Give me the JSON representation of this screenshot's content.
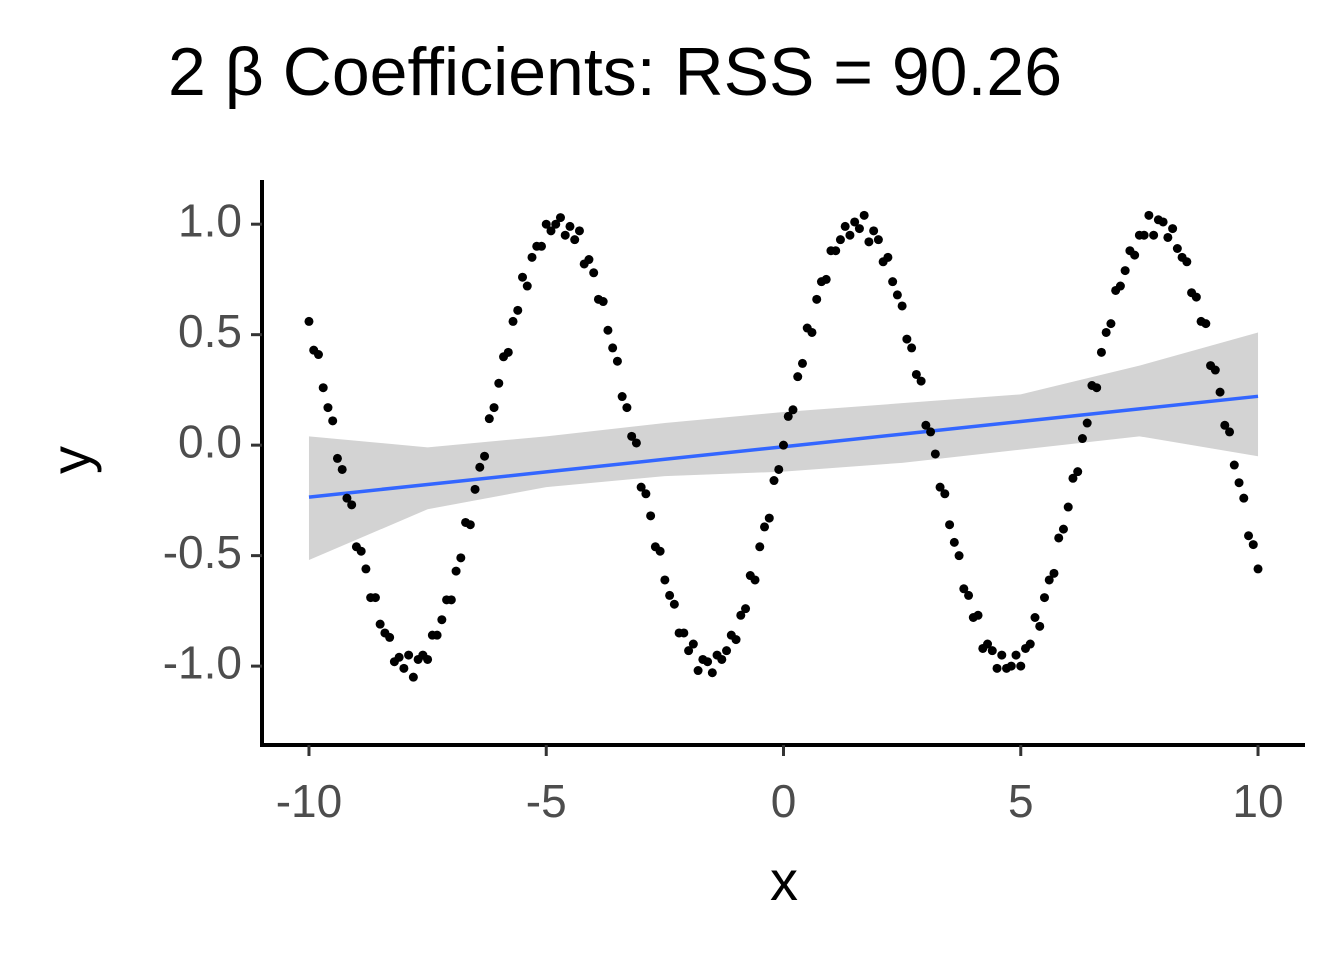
{
  "chart_data": {
    "type": "scatter",
    "title": "2 β Coefficients: RSS = 90.26",
    "x_label": "x",
    "y_label": "y",
    "x": [
      -10,
      -9.9,
      -9.8,
      -9.7,
      -9.6,
      -9.5,
      -9.4,
      -9.3,
      -9.2,
      -9.1,
      -9,
      -8.9,
      -8.8,
      -8.7,
      -8.6,
      -8.5,
      -8.4,
      -8.3,
      -8.2,
      -8.1,
      -8,
      -7.9,
      -7.8,
      -7.7,
      -7.6,
      -7.5,
      -7.4,
      -7.3,
      -7.2,
      -7.1,
      -7,
      -6.9,
      -6.8,
      -6.7,
      -6.6,
      -6.5,
      -6.4,
      -6.3,
      -6.2,
      -6.1,
      -6,
      -5.9,
      -5.8,
      -5.7,
      -5.6,
      -5.5,
      -5.4,
      -5.3,
      -5.2,
      -5.1,
      -5,
      -4.9,
      -4.8,
      -4.7,
      -4.6,
      -4.5,
      -4.4,
      -4.3,
      -4.2,
      -4.1,
      -4,
      -3.9,
      -3.8,
      -3.7,
      -3.6,
      -3.5,
      -3.4,
      -3.3,
      -3.2,
      -3.1,
      -3,
      -2.9,
      -2.8,
      -2.7,
      -2.6,
      -2.5,
      -2.4,
      -2.3,
      -2.2,
      -2.1,
      -2,
      -1.9,
      -1.8,
      -1.7,
      -1.6,
      -1.5,
      -1.4,
      -1.3,
      -1.2,
      -1.1,
      -1,
      -0.9,
      -0.8,
      -0.7,
      -0.6,
      -0.5,
      -0.4,
      -0.3,
      -0.2,
      -0.1,
      0,
      0.1,
      0.2,
      0.3,
      0.4,
      0.5,
      0.6,
      0.7,
      0.8,
      0.9,
      1,
      1.1,
      1.2,
      1.3,
      1.4,
      1.5,
      1.6,
      1.7,
      1.8,
      1.9,
      2,
      2.1,
      2.2,
      2.3,
      2.4,
      2.5,
      2.6,
      2.7,
      2.8,
      2.9,
      3,
      3.1,
      3.2,
      3.3,
      3.4,
      3.5,
      3.6,
      3.7,
      3.8,
      3.9,
      4,
      4.1,
      4.2,
      4.3,
      4.4,
      4.5,
      4.6,
      4.7,
      4.8,
      4.9,
      5,
      5.1,
      5.2,
      5.3,
      5.4,
      5.5,
      5.6,
      5.7,
      5.8,
      5.9,
      6,
      6.1,
      6.2,
      6.3,
      6.4,
      6.5,
      6.6,
      6.7,
      6.8,
      6.9,
      7,
      7.1,
      7.2,
      7.3,
      7.4,
      7.5,
      7.6,
      7.7,
      7.8,
      7.9,
      8,
      8.1,
      8.2,
      8.3,
      8.4,
      8.5,
      8.6,
      8.7,
      8.8,
      8.9,
      9,
      9.1,
      9.2,
      9.3,
      9.4,
      9.5,
      9.6,
      9.7,
      9.8,
      9.9,
      10
    ],
    "values": [
      0.56,
      0.43,
      0.41,
      0.26,
      0.17,
      0.11,
      -0.06,
      -0.11,
      -0.24,
      -0.27,
      -0.46,
      -0.48,
      -0.56,
      -0.69,
      -0.69,
      -0.81,
      -0.85,
      -0.87,
      -0.98,
      -0.96,
      -1.01,
      -0.95,
      -1.05,
      -0.97,
      -0.95,
      -0.97,
      -0.86,
      -0.86,
      -0.79,
      -0.7,
      -0.7,
      -0.57,
      -0.51,
      -0.35,
      -0.36,
      -0.2,
      -0.1,
      -0.05,
      0.12,
      0.17,
      0.28,
      0.4,
      0.42,
      0.56,
      0.61,
      0.76,
      0.72,
      0.85,
      0.9,
      0.9,
      1,
      0.97,
      1,
      1.03,
      0.95,
      0.99,
      0.93,
      0.97,
      0.82,
      0.84,
      0.78,
      0.66,
      0.65,
      0.52,
      0.44,
      0.38,
      0.22,
      0.17,
      0.04,
      0.01,
      -0.19,
      -0.22,
      -0.32,
      -0.46,
      -0.48,
      -0.61,
      -0.68,
      -0.72,
      -0.85,
      -0.85,
      -0.93,
      -0.9,
      -1.02,
      -0.97,
      -0.98,
      -1.03,
      -0.95,
      -0.97,
      -0.93,
      -0.86,
      -0.88,
      -0.77,
      -0.74,
      -0.59,
      -0.61,
      -0.46,
      -0.37,
      -0.33,
      -0.16,
      -0.11,
      0,
      0.13,
      0.16,
      0.31,
      0.37,
      0.53,
      0.51,
      0.66,
      0.74,
      0.75,
      0.88,
      0.88,
      0.93,
      0.99,
      0.95,
      1.01,
      0.98,
      1.04,
      0.92,
      0.97,
      0.93,
      0.83,
      0.85,
      0.74,
      0.68,
      0.63,
      0.48,
      0.44,
      0.32,
      0.29,
      0.09,
      0.06,
      -0.04,
      -0.19,
      -0.22,
      -0.36,
      -0.44,
      -0.5,
      -0.65,
      -0.68,
      -0.78,
      -0.77,
      -0.92,
      -0.9,
      -0.93,
      -1.01,
      -0.95,
      -1.01,
      -1,
      -0.95,
      -1,
      -0.92,
      -0.9,
      -0.78,
      -0.82,
      -0.69,
      -0.61,
      -0.58,
      -0.42,
      -0.38,
      -0.28,
      -0.15,
      -0.12,
      0.03,
      0.1,
      0.27,
      0.26,
      0.42,
      0.51,
      0.55,
      0.7,
      0.72,
      0.79,
      0.88,
      0.86,
      0.95,
      0.95,
      1.04,
      0.95,
      1.02,
      1.01,
      0.94,
      0.98,
      0.89,
      0.85,
      0.83,
      0.69,
      0.67,
      0.56,
      0.55,
      0.36,
      0.34,
      0.24,
      0.09,
      0.06,
      -0.09,
      -0.17,
      -0.24,
      -0.41,
      -0.45,
      -0.56
    ],
    "color": "#000000",
    "fit": {
      "x": [
        -10,
        -7.5,
        -5,
        -2.5,
        0,
        2.5,
        5,
        7.5,
        10
      ],
      "y": [
        -0.235,
        -0.178,
        -0.121,
        -0.064,
        -0.007,
        0.05,
        0.107,
        0.164,
        0.221
      ],
      "lower": [
        -0.52,
        -0.29,
        -0.19,
        -0.14,
        -0.12,
        -0.08,
        -0.02,
        0.04,
        -0.05
      ],
      "upper": [
        0.04,
        -0.01,
        0.04,
        0.1,
        0.15,
        0.19,
        0.23,
        0.36,
        0.51
      ],
      "color": "#3366ff",
      "fill": "#d3d3d3"
    },
    "xlim": [
      -10.99,
      10.99
    ],
    "ylim": [
      -1.357,
      1.2
    ],
    "xticks": [
      -10,
      -5,
      0,
      5,
      10
    ],
    "yticks": [
      {
        "value": 1,
        "label": "1.0"
      },
      0.5,
      {
        "value": 0,
        "label": "0.0"
      },
      -0.5,
      {
        "value": -1,
        "label": "-1.0"
      }
    ]
  }
}
